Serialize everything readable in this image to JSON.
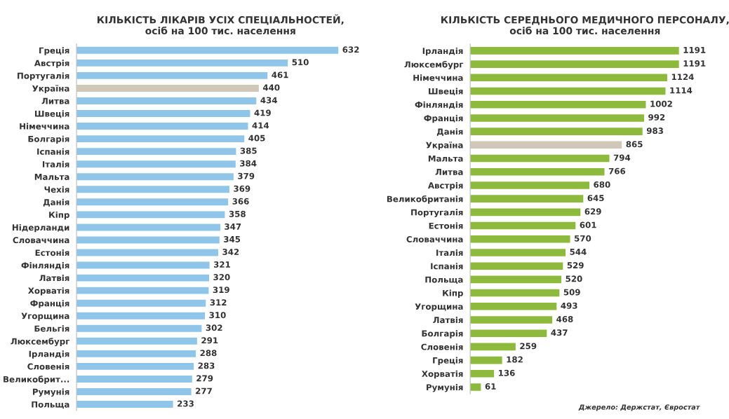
{
  "chart_data": [
    {
      "type": "bar",
      "orientation": "horizontal",
      "title": "КІЛЬКІСТЬ ЛІКАРІВ УСІХ СПЕЦІАЛЬНОСТЕЙ,\nосіб на 100 тис. населення",
      "data_labels": true,
      "tick_labels": "y",
      "grid": false,
      "legend": false,
      "categories": [
        "Греція",
        "Австрія",
        "Португалія",
        "Україна",
        "Литва",
        "Швеція",
        "Німеччина",
        "Болгарія",
        "Іспанія",
        "Італія",
        "Мальта",
        "Чехія",
        "Данія",
        "Кіпр",
        "Нідерланди",
        "Словаччина",
        "Естонія",
        "Фінляндія",
        "Латвія",
        "Хорватія",
        "Франція",
        "Угорщина",
        "Бельгія",
        "Люксембург",
        "Ірландія",
        "Словенія",
        "Великобрит...",
        "Румунія",
        "Польща"
      ],
      "values": [
        632,
        510,
        461,
        440,
        434,
        419,
        414,
        405,
        385,
        384,
        379,
        369,
        366,
        358,
        347,
        345,
        342,
        321,
        320,
        319,
        312,
        310,
        302,
        291,
        288,
        283,
        279,
        277,
        233
      ],
      "colors": [
        "#8ec5e8",
        "#8ec5e8",
        "#8ec5e8",
        "#cfc8b8",
        "#8ec5e8",
        "#8ec5e8",
        "#8ec5e8",
        "#8ec5e8",
        "#8ec5e8",
        "#8ec5e8",
        "#8ec5e8",
        "#8ec5e8",
        "#8ec5e8",
        "#8ec5e8",
        "#8ec5e8",
        "#8ec5e8",
        "#8ec5e8",
        "#8ec5e8",
        "#8ec5e8",
        "#8ec5e8",
        "#8ec5e8",
        "#8ec5e8",
        "#8ec5e8",
        "#8ec5e8",
        "#8ec5e8",
        "#8ec5e8",
        "#8ec5e8",
        "#8ec5e8",
        "#8ec5e8"
      ]
    },
    {
      "type": "bar",
      "orientation": "horizontal",
      "title": "КІЛЬКІСТЬ СЕРЕДНЬОГО МЕДИЧНОГО ПЕРСОНАЛУ,\nосіб на 100 тис. населення",
      "data_labels": true,
      "tick_labels": "y",
      "grid": false,
      "legend": false,
      "categories": [
        "Ірландія",
        "Люксембург",
        "Німеччина",
        "Швеція",
        "Фінляндія",
        "Франція",
        "Данія",
        "Україна",
        "Мальта",
        "Литва",
        "Австрія",
        "Великобританія",
        "Португалія",
        "Естонія",
        "Словаччина",
        "Італія",
        "Іспанія",
        "Польща",
        "Кіпр",
        "Угорщина",
        "Латвія",
        "Болгарія",
        "Словенія",
        "Греція",
        "Хорватія",
        "Румунія"
      ],
      "values": [
        1191,
        1191,
        1124,
        1114,
        1002,
        992,
        983,
        865,
        794,
        766,
        680,
        645,
        629,
        601,
        570,
        544,
        529,
        520,
        509,
        493,
        468,
        437,
        259,
        182,
        136,
        61
      ],
      "colors": [
        "#8dba3c",
        "#8dba3c",
        "#8dba3c",
        "#8dba3c",
        "#8dba3c",
        "#8dba3c",
        "#8dba3c",
        "#cfc8b8",
        "#8dba3c",
        "#8dba3c",
        "#8dba3c",
        "#8dba3c",
        "#8dba3c",
        "#8dba3c",
        "#8dba3c",
        "#8dba3c",
        "#8dba3c",
        "#8dba3c",
        "#8dba3c",
        "#8dba3c",
        "#8dba3c",
        "#8dba3c",
        "#8dba3c",
        "#8dba3c",
        "#8dba3c",
        "#8dba3c"
      ],
      "annotations": [
        "Джерело: Держстат, Євростат"
      ]
    }
  ]
}
